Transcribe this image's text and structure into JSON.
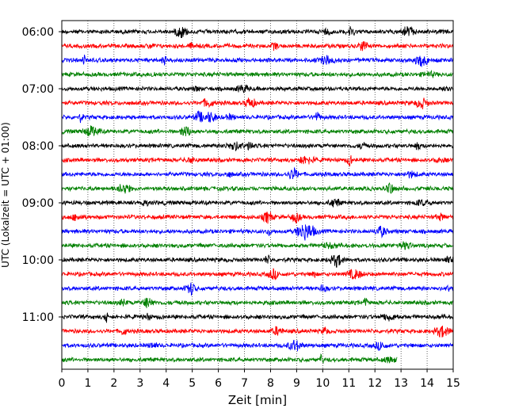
{
  "chart_data": {
    "type": "line",
    "title": "",
    "xlabel": "Zeit  [min]",
    "ylabel": "UTC (Lokalzeit = UTC + 01:00)",
    "xlim": [
      0,
      15
    ],
    "xticks": [
      "0",
      "1",
      "2",
      "3",
      "4",
      "5",
      "6",
      "7",
      "8",
      "9",
      "10",
      "11",
      "12",
      "13",
      "14",
      "15"
    ],
    "yticks": [
      "06:00",
      "07:00",
      "08:00",
      "09:00",
      "10:00",
      "11:00"
    ],
    "grid": {
      "x": "dotted",
      "y": false
    },
    "trace_interval_min": 15,
    "colors": [
      "#000000",
      "#ff0000",
      "#0000ff",
      "#008000"
    ],
    "rows": [
      {
        "start": "06:00",
        "color": "#000000",
        "end_min": 15
      },
      {
        "start": "06:15",
        "color": "#ff0000",
        "end_min": 15
      },
      {
        "start": "06:30",
        "color": "#0000ff",
        "end_min": 15
      },
      {
        "start": "06:45",
        "color": "#008000",
        "end_min": 15
      },
      {
        "start": "07:00",
        "color": "#000000",
        "end_min": 15
      },
      {
        "start": "07:15",
        "color": "#ff0000",
        "end_min": 15
      },
      {
        "start": "07:30",
        "color": "#0000ff",
        "end_min": 15
      },
      {
        "start": "07:45",
        "color": "#008000",
        "end_min": 15
      },
      {
        "start": "08:00",
        "color": "#000000",
        "end_min": 15
      },
      {
        "start": "08:15",
        "color": "#ff0000",
        "end_min": 15
      },
      {
        "start": "08:30",
        "color": "#0000ff",
        "end_min": 15
      },
      {
        "start": "08:45",
        "color": "#008000",
        "end_min": 15
      },
      {
        "start": "09:00",
        "color": "#000000",
        "end_min": 15
      },
      {
        "start": "09:15",
        "color": "#ff0000",
        "end_min": 15
      },
      {
        "start": "09:30",
        "color": "#0000ff",
        "end_min": 15
      },
      {
        "start": "09:45",
        "color": "#008000",
        "end_min": 15
      },
      {
        "start": "10:00",
        "color": "#000000",
        "end_min": 15
      },
      {
        "start": "10:15",
        "color": "#ff0000",
        "end_min": 15
      },
      {
        "start": "10:30",
        "color": "#0000ff",
        "end_min": 15
      },
      {
        "start": "10:45",
        "color": "#008000",
        "end_min": 15
      },
      {
        "start": "11:00",
        "color": "#000000",
        "end_min": 15
      },
      {
        "start": "11:15",
        "color": "#ff0000",
        "end_min": 15
      },
      {
        "start": "11:30",
        "color": "#0000ff",
        "end_min": 15
      },
      {
        "start": "11:45",
        "color": "#008000",
        "end_min": 12.85
      }
    ]
  }
}
